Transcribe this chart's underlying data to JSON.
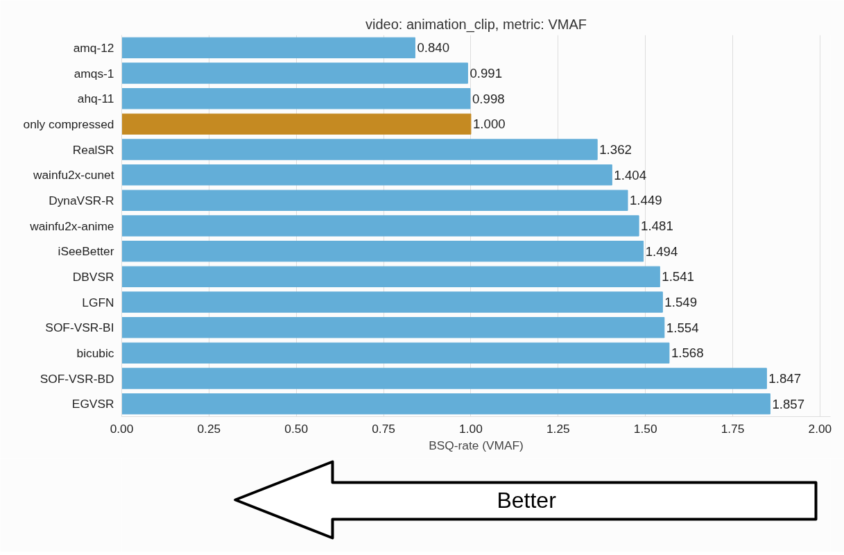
{
  "chart_data": {
    "type": "bar",
    "orientation": "horizontal",
    "title": "video: animation_clip, metric: VMAF",
    "xlabel": "BSQ-rate (VMAF)",
    "categories": [
      "amq-12",
      "amqs-1",
      "ahq-11",
      "only compressed",
      "RealSR",
      "wainfu2x-cunet",
      "DynaVSR-R",
      "wainfu2x-anime",
      "iSeeBetter",
      "DBVSR",
      "LGFN",
      "SOF-VSR-BI",
      "bicubic",
      "SOF-VSR-BD",
      "EGVSR"
    ],
    "values": [
      0.84,
      0.991,
      0.998,
      1.0,
      1.362,
      1.404,
      1.449,
      1.481,
      1.494,
      1.541,
      1.549,
      1.554,
      1.568,
      1.847,
      1.857
    ],
    "value_labels": [
      "0.840",
      "0.991",
      "0.998",
      "1.000",
      "1.362",
      "1.404",
      "1.449",
      "1.481",
      "1.494",
      "1.541",
      "1.549",
      "1.554",
      "1.568",
      "1.847",
      "1.857"
    ],
    "colors": [
      "#63aed8",
      "#63aed8",
      "#63aed8",
      "#c58a22",
      "#63aed8",
      "#63aed8",
      "#63aed8",
      "#63aed8",
      "#63aed8",
      "#63aed8",
      "#63aed8",
      "#63aed8",
      "#63aed8",
      "#63aed8",
      "#63aed8"
    ],
    "xlim": [
      0,
      2.03
    ],
    "xticks": [
      {
        "value": 0,
        "label": "0.00"
      },
      {
        "value": 0.25,
        "label": "0.25"
      },
      {
        "value": 0.5,
        "label": "0.50"
      },
      {
        "value": 0.75,
        "label": "0.75"
      },
      {
        "value": 1,
        "label": "1.00"
      },
      {
        "value": 1.25,
        "label": "1.25"
      },
      {
        "value": 1.5,
        "label": "1.50"
      },
      {
        "value": 1.75,
        "label": "1.75"
      },
      {
        "value": 2,
        "label": "2.00"
      }
    ],
    "grid": "x",
    "annotations": [
      "Better"
    ]
  }
}
